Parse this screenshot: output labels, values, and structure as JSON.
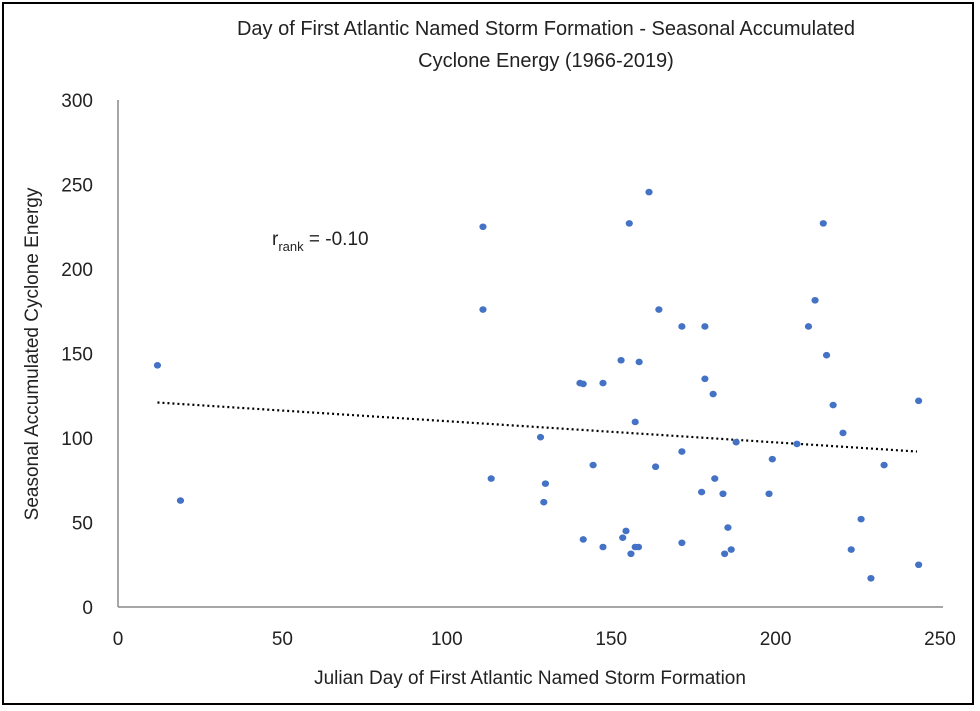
{
  "chart_data": {
    "type": "scatter",
    "title_lines": [
      "Day of First Atlantic Named Storm Formation - Seasonal Accumulated",
      "Cyclone Energy (1966-2019)"
    ],
    "xlabel": "Julian Day of First Atlantic Named Storm Formation",
    "ylabel": "Seasonal Accumulated Cyclone Energy",
    "xlim": [
      0,
      250
    ],
    "ylim": [
      0,
      300
    ],
    "xticks": [
      0,
      50,
      100,
      150,
      200,
      250
    ],
    "yticks": [
      0,
      50,
      100,
      150,
      200,
      250,
      300
    ],
    "grid": false,
    "marker_color": "#4472C4",
    "annotation": {
      "r": "r",
      "sub": "rank",
      "text": " = -0.10"
    },
    "trendline": {
      "style": "dotted",
      "color": "#000000",
      "points": [
        [
          12,
          121
        ],
        [
          243,
          92
        ]
      ]
    },
    "points": [
      [
        12,
        143
      ],
      [
        19,
        63
      ],
      [
        111,
        225
      ],
      [
        111,
        176
      ],
      [
        113.5,
        76
      ],
      [
        128.5,
        100.5
      ],
      [
        129.5,
        62
      ],
      [
        130,
        73
      ],
      [
        140.5,
        132.5
      ],
      [
        141.5,
        132
      ],
      [
        141.5,
        40
      ],
      [
        144.5,
        84
      ],
      [
        147.5,
        132.5
      ],
      [
        147.5,
        35.5
      ],
      [
        153,
        146
      ],
      [
        153.5,
        41
      ],
      [
        154.5,
        45
      ],
      [
        155.5,
        227
      ],
      [
        156,
        31.5
      ],
      [
        157.3,
        35.5
      ],
      [
        158.3,
        35.5
      ],
      [
        157.3,
        109.5
      ],
      [
        158.5,
        145
      ],
      [
        161.5,
        245.5
      ],
      [
        163.5,
        83
      ],
      [
        164.5,
        176
      ],
      [
        171.5,
        92
      ],
      [
        171.5,
        38
      ],
      [
        171.5,
        166
      ],
      [
        177.5,
        68
      ],
      [
        178.5,
        135
      ],
      [
        178.5,
        166
      ],
      [
        181,
        126
      ],
      [
        181.5,
        76
      ],
      [
        184,
        67
      ],
      [
        184.5,
        31.5
      ],
      [
        185.5,
        47
      ],
      [
        186.5,
        34
      ],
      [
        188,
        97.5
      ],
      [
        198,
        67
      ],
      [
        199,
        87.5
      ],
      [
        206.5,
        96.5
      ],
      [
        210,
        166
      ],
      [
        212,
        181.5
      ],
      [
        214.5,
        227
      ],
      [
        215.5,
        149
      ],
      [
        217.5,
        119.5
      ],
      [
        220.5,
        103
      ],
      [
        223,
        34
      ],
      [
        226,
        52
      ],
      [
        229,
        17
      ],
      [
        233,
        84
      ],
      [
        243.5,
        122
      ],
      [
        243.5,
        25
      ]
    ]
  }
}
